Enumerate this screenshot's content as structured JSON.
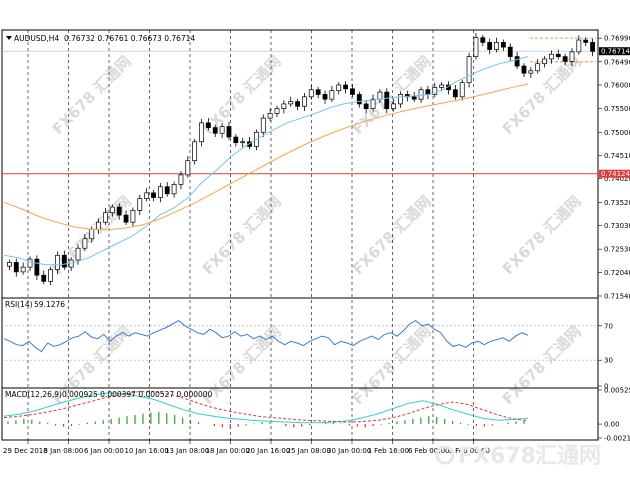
{
  "header": {
    "symbol_line": "AUDUSD,H4",
    "ohlc": "0.76732 0.76761 0.76673 0.76714"
  },
  "indicators": {
    "rsi_label": "RSI(14)",
    "rsi_value": "59.1276",
    "macd_label": "MACD(12,26,9)",
    "macd_values": "0.000925 0.000397 0.000527 0.000000"
  },
  "watermark": {
    "text": "FX678 汇通网",
    "logo_latin": "FX678",
    "logo_cjk": "汇通网"
  },
  "colors": {
    "candles": "#000000",
    "ma_fast": "#6fc9e8",
    "ma_slow": "#f4a64a",
    "hline": "#e03b3b",
    "price_ref_line": "#e87d2c",
    "rsi_line": "#3a7bd5",
    "macd_signal": "#e03b3b",
    "macd_line": "#2fd0d0",
    "hist_up": "#2e9e2e",
    "hist_down": "#d03030"
  },
  "chart_data": [
    {
      "type": "candlestick",
      "title": "AUDUSD,H4",
      "x_ticks": [
        "29 Dec 2016",
        "3 Jan 08:00",
        "6 Jan 00:00",
        "10 Jan 16:00",
        "13 Jan 08:00",
        "18 Jan 00:00",
        "20 Jan 16:00",
        "25 Jan 08:00",
        "30 Jan 00:00",
        "1 Feb 16:00",
        "6 Feb 00:00",
        "9 Feb 00:00"
      ],
      "y_ticks": [
        0.7154,
        0.7204,
        0.7253,
        0.7303,
        0.7352,
        0.7402,
        0.7451,
        0.75,
        0.755,
        0.76,
        0.7649,
        0.7699
      ],
      "ylim": [
        0.7154,
        0.7712
      ],
      "current_price_label": "0.76714",
      "hline_label": "0.74124",
      "hline_value": 0.74124,
      "close_series": [
        0.7225,
        0.7205,
        0.7215,
        0.7232,
        0.7198,
        0.7185,
        0.721,
        0.724,
        0.7215,
        0.723,
        0.7255,
        0.7275,
        0.7295,
        0.731,
        0.733,
        0.7342,
        0.7325,
        0.731,
        0.7335,
        0.736,
        0.7372,
        0.7362,
        0.7385,
        0.737,
        0.739,
        0.741,
        0.744,
        0.748,
        0.752,
        0.751,
        0.7498,
        0.7512,
        0.749,
        0.7478,
        0.748,
        0.747,
        0.75,
        0.753,
        0.754,
        0.755,
        0.756,
        0.7565,
        0.7555,
        0.7575,
        0.759,
        0.758,
        0.757,
        0.7588,
        0.76,
        0.7592,
        0.758,
        0.756,
        0.755,
        0.757,
        0.7585,
        0.755,
        0.756,
        0.758,
        0.7575,
        0.757,
        0.759,
        0.758,
        0.7595,
        0.76,
        0.759,
        0.7575,
        0.7605,
        0.766,
        0.77,
        0.769,
        0.7675,
        0.769,
        0.768,
        0.766,
        0.764,
        0.7625,
        0.763,
        0.7645,
        0.7655,
        0.7665,
        0.766,
        0.765,
        0.767,
        0.7695,
        0.769,
        0.7671
      ],
      "ma_fast": [
        0.724,
        0.7235,
        0.7225,
        0.722,
        0.722,
        0.7225,
        0.7235,
        0.725,
        0.7265,
        0.728,
        0.73,
        0.7325,
        0.734,
        0.7362,
        0.7395,
        0.742,
        0.7448,
        0.747,
        0.7488,
        0.7505,
        0.752,
        0.753,
        0.754,
        0.7552,
        0.756,
        0.7565,
        0.7568,
        0.7572,
        0.7575,
        0.7577,
        0.758,
        0.759,
        0.7608,
        0.7622,
        0.7635,
        0.7645,
        0.7652,
        0.766
      ],
      "ma_slow": [
        0.7352,
        0.7338,
        0.7322,
        0.731,
        0.73,
        0.7295,
        0.7294,
        0.7298,
        0.7305,
        0.7318,
        0.7335,
        0.7352,
        0.7372,
        0.7392,
        0.7412,
        0.7432,
        0.7452,
        0.747,
        0.7487,
        0.7502,
        0.7515,
        0.7527,
        0.7537,
        0.7546,
        0.7554,
        0.7561,
        0.7568,
        0.7576,
        0.7585,
        0.7594,
        0.7602
      ]
    },
    {
      "type": "line",
      "title": "RSI(14)",
      "y_ticks": [
        70,
        30,
        0
      ],
      "ylim": [
        0,
        100
      ],
      "values": [
        55,
        52,
        48,
        47,
        52,
        45,
        40,
        50,
        46,
        48,
        52,
        56,
        58,
        63,
        57,
        55,
        60,
        52,
        58,
        62,
        58,
        62,
        60,
        58,
        62,
        65,
        68,
        72,
        76,
        70,
        66,
        62,
        60,
        66,
        62,
        56,
        58,
        63,
        58,
        60,
        55,
        58,
        54,
        58,
        52,
        48,
        52,
        50,
        47,
        52,
        55,
        58,
        56,
        48,
        52,
        50,
        47,
        52,
        55,
        58,
        54,
        60,
        62,
        58,
        64,
        72,
        76,
        70,
        72,
        66,
        62,
        52,
        46,
        48,
        45,
        50,
        52,
        48,
        52,
        54,
        56,
        52,
        58,
        62,
        59
      ]
    },
    {
      "type": "bar",
      "title": "MACD(12,26,9)",
      "y_ticks": [
        0.00525,
        0.0,
        -0.002146
      ],
      "y_tick_labels": [
        "0.00525",
        "0.00",
        "-0.002146"
      ],
      "ylim": [
        -0.002146,
        0.00525
      ],
      "histogram": [
        0.0004,
        0.0006,
        0.0008,
        0.0007,
        0.0004,
        0.0002,
        -0.0002,
        -0.0004,
        -0.0003,
        -0.0001,
        0.0002,
        0.0004,
        0.0006,
        0.0008,
        0.001,
        0.0012,
        0.0014,
        0.0016,
        0.0018,
        0.0019,
        0.0017,
        0.0014,
        0.001,
        0.0006,
        0.0003,
        0.0,
        -0.0003,
        -0.0005,
        -0.0006,
        -0.0004,
        -0.0002,
        0.0001,
        0.0003,
        0.0002,
        0.0,
        -0.0003,
        -0.0005,
        -0.0004,
        -0.0002,
        0.0,
        0.0002,
        0.0003,
        0.0001,
        -0.0002,
        -0.0004,
        -0.0005,
        -0.0003,
        -0.0001,
        0.0002,
        0.0004,
        0.0006,
        0.0008,
        0.001,
        0.0012,
        0.0011,
        0.0008,
        0.0005,
        0.0002,
        -0.0001,
        -0.0003,
        -0.0004,
        -0.0002,
        0.0,
        0.0002,
        0.0004,
        0.0005
      ],
      "macd_signal": [
        0.001,
        0.0012,
        0.0015,
        0.0019,
        0.0024,
        0.003,
        0.0036,
        0.0042,
        0.0046,
        0.005,
        0.005,
        0.0046,
        0.004,
        0.0032,
        0.0025,
        0.002,
        0.0016,
        0.0012,
        0.001,
        0.0008,
        0.0006,
        0.0005,
        0.0004,
        0.0003,
        0.0004,
        0.0006,
        0.001,
        0.0016,
        0.0024,
        0.003,
        0.0034,
        0.003,
        0.0022,
        0.0014,
        0.0008,
        0.0005
      ],
      "macd_line": [
        0.0012,
        0.0015,
        0.002,
        0.0027,
        0.0034,
        0.004,
        0.0045,
        0.0048,
        0.0047,
        0.0043,
        0.0038,
        0.003,
        0.0022,
        0.0016,
        0.0012,
        0.0009,
        0.0007,
        0.0005,
        0.0004,
        0.0003,
        0.0002,
        0.0002,
        0.0003,
        0.0005,
        0.001,
        0.0016,
        0.0024,
        0.0032,
        0.0036,
        0.003,
        0.0022,
        0.0015,
        0.0009,
        0.0006,
        0.0007,
        0.0009
      ]
    }
  ]
}
